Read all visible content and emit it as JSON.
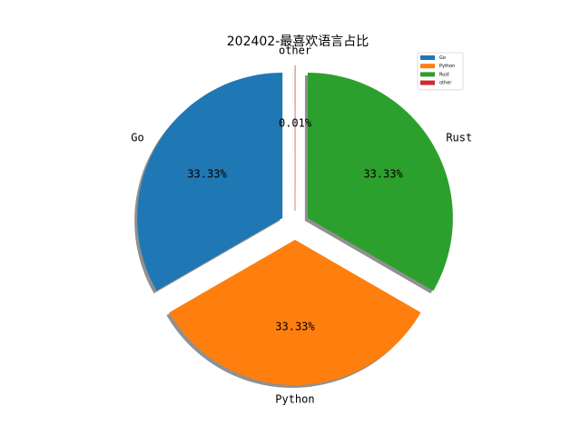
{
  "chart_data": {
    "type": "pie",
    "title": "202402-最喜欢语言占比",
    "labels": [
      "Go",
      "Python",
      "Rust",
      "other"
    ],
    "values": [
      33.33,
      33.33,
      33.33,
      0.01
    ],
    "percent_labels": [
      "33.33%",
      "33.33%",
      "33.33%",
      "0.01%"
    ],
    "colors": [
      "#1f77b4",
      "#ff7f0e",
      "#2ca02c",
      "#d62728"
    ],
    "start_angle_deg": 90,
    "explode": [
      0.1,
      0.1,
      0.1,
      0.1
    ],
    "shadow": true,
    "legend": {
      "placement": "top-right",
      "entries": [
        "Go",
        "Python",
        "Rust",
        "other"
      ]
    }
  }
}
